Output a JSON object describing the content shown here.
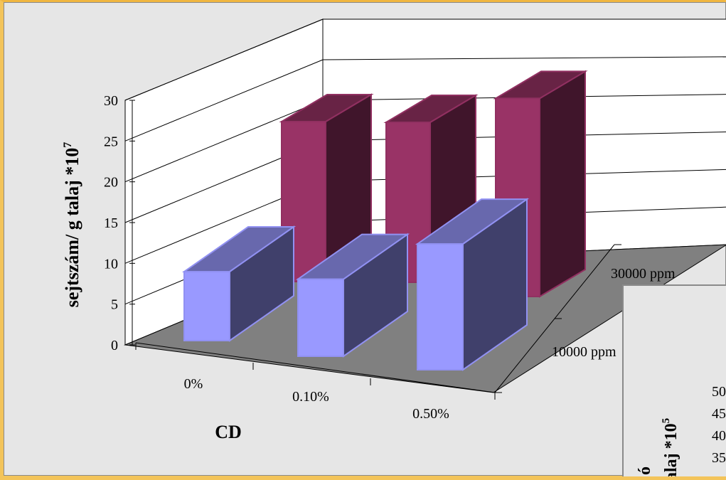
{
  "chart_data": {
    "type": "bar",
    "subtype": "3d-column",
    "categories": [
      "0%",
      "0.10%",
      "0.50%"
    ],
    "series": [
      {
        "name": "10000 ppm",
        "values": [
          8.5,
          9.5,
          15.5
        ],
        "color": "#9999ff"
      },
      {
        "name": "30000 ppm",
        "values": [
          21,
          21,
          26
        ],
        "color": "#993366"
      }
    ],
    "depth_labels": [
      "10000 ppm",
      "30000 ppm"
    ],
    "xlabel": "CD",
    "ylabel": {
      "main": "sejtszám/ g talaj *10",
      "sup": "7"
    },
    "ylim": [
      0,
      30
    ],
    "yticks": [
      "0",
      "5",
      "10",
      "15",
      "20",
      "25",
      "30"
    ],
    "grid": true,
    "wall_color": "#ffffff",
    "floor_color": "#808080"
  },
  "overlay_chart": {
    "ylabel_partial": {
      "main": "ó",
      "line2": "alaj *10",
      "sup": "5"
    },
    "yticks_partial": [
      "50",
      "45",
      "40",
      "35"
    ]
  }
}
